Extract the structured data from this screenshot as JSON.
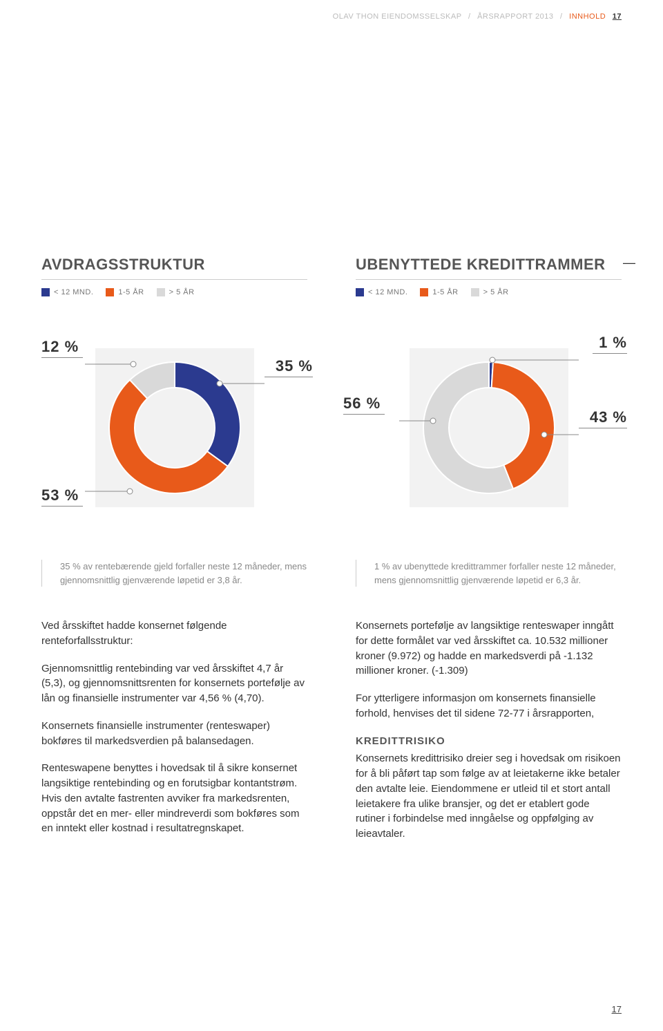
{
  "header": {
    "company": "OLAV THON EIENDOMSSELSKAP",
    "report": "ÅRSRAPPORT 2013",
    "section": "INNHOLD",
    "page_top": "17"
  },
  "chart_left": {
    "title": "AVDRAGSSTRUKTUR",
    "legend": [
      {
        "label": "< 12 MND.",
        "color": "#2b3a8f"
      },
      {
        "label": "1-5 ÅR",
        "color": "#e85a1a"
      },
      {
        "label": "> 5 ÅR",
        "color": "#d9d9d9"
      }
    ],
    "slices": [
      {
        "value": 35,
        "color": "#2b3a8f"
      },
      {
        "value": 53,
        "color": "#e85a1a"
      },
      {
        "value": 12,
        "color": "#d9d9d9"
      }
    ],
    "labels": {
      "top_left": "12 %",
      "top_right": "35 %",
      "bottom_left": "53 %"
    },
    "caption": "35 % av rentebærende gjeld forfaller neste 12 måneder, mens gjennomsnittlig gjenværende løpetid er 3,8 år."
  },
  "chart_right": {
    "title": "UBENYTTEDE KREDITTRAMMER",
    "legend": [
      {
        "label": "< 12 MND.",
        "color": "#2b3a8f"
      },
      {
        "label": "1-5 ÅR",
        "color": "#e85a1a"
      },
      {
        "label": "> 5 ÅR",
        "color": "#d9d9d9"
      }
    ],
    "slices": [
      {
        "value": 1,
        "color": "#2b3a8f"
      },
      {
        "value": 43,
        "color": "#e85a1a"
      },
      {
        "value": 56,
        "color": "#d9d9d9"
      }
    ],
    "labels": {
      "top_right": "1 %",
      "mid_right": "43 %",
      "mid_left": "56 %"
    },
    "caption": "1 % av ubenyttede kredittrammer forfaller neste 12 måneder, mens gjennomsnittlig gjenværende løpetid er 6,3 år."
  },
  "body_left": {
    "p1": "Ved årsskiftet hadde konsernet følgende renteforfallsstruktur:",
    "p2": "Gjennomsnittlig rentebinding var ved årsskiftet 4,7 år (5,3), og gjennomsnittsrenten for konsernets portefølje av lån og finansielle instrumenter var 4,56 % (4,70).",
    "p3": "Konsernets finansielle instrumenter (renteswaper) bokføres til markedsverdien på balansedagen.",
    "p4": "Renteswapene benyttes i hovedsak til å sikre konsernet langsiktige rentebinding og en forutsigbar kontantstrøm. Hvis den avtalte fastrenten avviker fra markedsrenten, oppstår det en mer- eller mindreverdi som bokføres som en inntekt eller kostnad i resultatregnskapet."
  },
  "body_right": {
    "p1": "Konsernets portefølje av langsiktige renteswaper inngått for dette formålet var ved årsskiftet ca. 10.532 millioner kroner (9.972) og hadde en markedsverdi på -1.132 millioner kroner. (-1.309)",
    "p2": "For ytterligere informasjon om konsernets finansielle forhold, henvises det til sidene 72-77 i årsrapporten,",
    "subhead": "KREDITTRISIKO",
    "p3": "Konsernets kredittrisiko dreier seg i hovedsak om risikoen for å bli påført tap som følge av at leietakerne ikke betaler den avtalte leie. Eiendommene er utleid til et stort antall leietakere fra ulike bransjer, og det er etablert gode rutiner i forbindelse med inngåelse og oppfølging av leieavtaler."
  },
  "footer_page": "17",
  "donut_style": {
    "outer_r": 95,
    "inner_r": 58,
    "bg_width": 230,
    "bg_height": 230
  }
}
